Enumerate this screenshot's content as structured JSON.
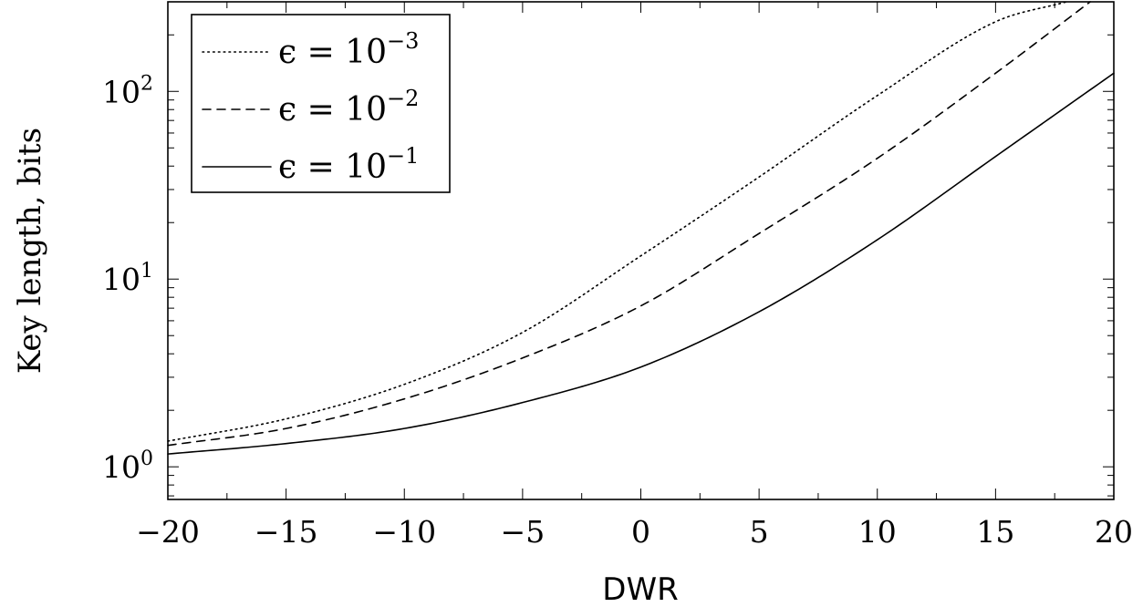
{
  "chart_data": {
    "type": "line",
    "title": "",
    "xlabel": "DWR",
    "ylabel": "Key length, bits",
    "xlim": [
      -20,
      20
    ],
    "ylim": [
      0.67,
      300
    ],
    "yscale": "log",
    "xticks": [
      -20,
      -15,
      -10,
      -5,
      0,
      5,
      10,
      15,
      20
    ],
    "xtick_labels": [
      "−20",
      "−15",
      "−10",
      "−5",
      "0",
      "5",
      "10",
      "15",
      "20"
    ],
    "yticks": [
      {
        "value": 1,
        "base": "10",
        "exp": "0"
      },
      {
        "value": 10,
        "base": "10",
        "exp": "1"
      },
      {
        "value": 100,
        "base": "10",
        "exp": "2"
      }
    ],
    "legend_position": "top-left",
    "grid": false,
    "series": [
      {
        "name": "ε = 10⁻³",
        "legend_prefix": "ϵ = 10",
        "legend_exp": "−3",
        "style": "dotted",
        "x": [
          -20,
          -15,
          -10,
          -5,
          0,
          5,
          10,
          15,
          18
        ],
        "y": [
          1.37,
          1.8,
          2.75,
          5.2,
          13.3,
          35,
          95,
          235,
          300
        ]
      },
      {
        "name": "ε = 10⁻²",
        "legend_prefix": "ϵ = 10",
        "legend_exp": "−2",
        "style": "dashed",
        "x": [
          -20,
          -15,
          -10,
          -5,
          0,
          5,
          10,
          15,
          19
        ],
        "y": [
          1.3,
          1.6,
          2.3,
          3.8,
          7.2,
          17.5,
          44,
          125,
          300
        ]
      },
      {
        "name": "ε = 10⁻¹",
        "legend_prefix": "ϵ = 10",
        "legend_exp": "−1",
        "style": "solid",
        "x": [
          -20,
          -15,
          -10,
          -5,
          0,
          5,
          10,
          15,
          20
        ],
        "y": [
          1.17,
          1.33,
          1.6,
          2.2,
          3.4,
          6.7,
          16.2,
          45,
          125
        ]
      }
    ]
  }
}
